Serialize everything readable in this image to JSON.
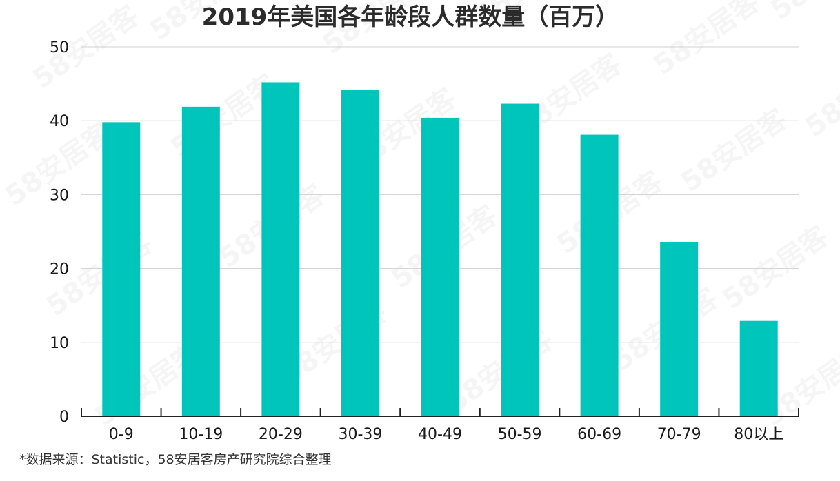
{
  "title": "2019年美国各年龄段人群数量（百万）",
  "source": "*数据来源：Statistic，58安居客房产研究院综合整理",
  "watermark": "58安居客",
  "colors": {
    "bar": "#00c5bb",
    "grid": "#d0d0d0",
    "axis": "#222222"
  },
  "chart_data": {
    "type": "bar",
    "title": "2019年美国各年龄段人群数量（百万）",
    "xlabel": "",
    "ylabel": "",
    "categories": [
      "0-9",
      "10-19",
      "20-29",
      "30-39",
      "40-49",
      "50-59",
      "60-69",
      "70-79",
      "80以上"
    ],
    "values": [
      39.8,
      41.9,
      45.2,
      44.2,
      40.4,
      42.3,
      38.1,
      23.6,
      12.9
    ],
    "yticks": [
      "0",
      "10",
      "20",
      "30",
      "40",
      "50"
    ],
    "ylim": [
      0,
      50
    ],
    "grid": true,
    "legend": "none"
  }
}
